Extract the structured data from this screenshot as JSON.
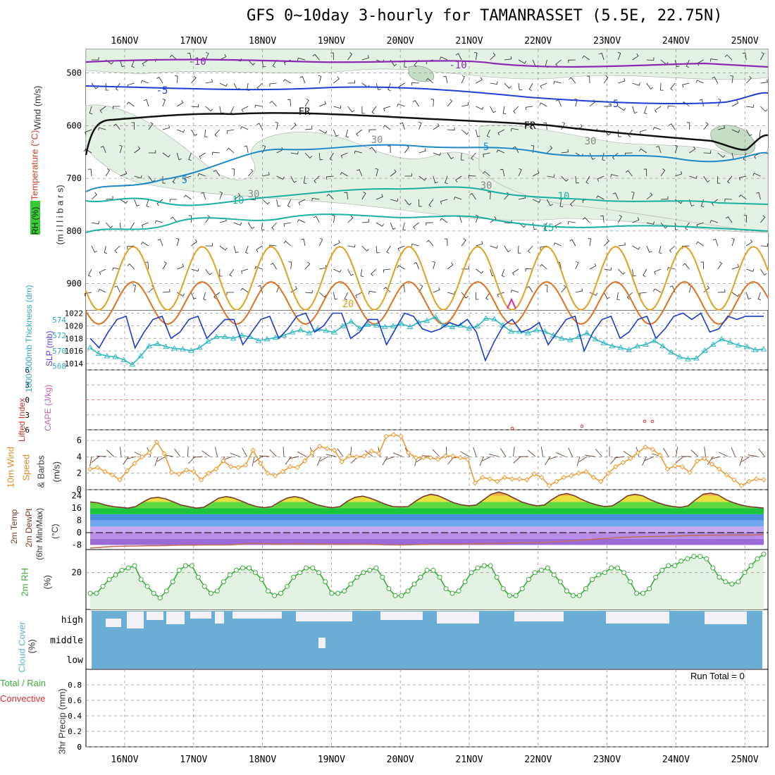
{
  "title": "GFS 0~10day 3-hourly for TAMANRASSET (5.5E, 22.75N)",
  "dates": [
    "16NOV",
    "17NOV",
    "18NOV",
    "19NOV",
    "20NOV",
    "21NOV",
    "22NOV",
    "23NOV",
    "24NOV",
    "25NOV"
  ],
  "run_total": "Run Total = 0",
  "left_labels": {
    "wind": "Wind (m/s)",
    "temperature": "Temperature (°C)",
    "rh": "RH (%)",
    "millibars": "(m i l l i b a r s)",
    "thickness": "1000-500mb Thickness (dm)",
    "slp": "SLP (mb)",
    "lifted": "Lifted Index",
    "cape": "CAPE (J/kg)",
    "wind10": "10m Wind",
    "speed": "Speed",
    "barbs": "& Barbs",
    "ms": "(m/s)",
    "temp2m": "2m Temp",
    "dew2m": "2m DewPt",
    "minmax": "(6hr Min/Max)",
    "degc": "(°C)",
    "rh2m": "2m RH",
    "pct": "(%)",
    "cloud": "Cloud Cover",
    "cpct": "(%)",
    "precip": "3hr Precip (mm)",
    "total_rain": "Total / Rain",
    "convective": "Convective"
  },
  "colors": {
    "bg_rh": "#e4f2e4",
    "rh_dark": "#c5dcc5",
    "cloud": "#6aaed6",
    "cloud_clear": "#f4f0f8",
    "slp": "#1a3ccc",
    "thick": "#33b8c0",
    "wind_speed": "#ee9933",
    "temp_line": "#7a3a2a",
    "rh2m": "#3aaa3a",
    "cape_dash": "#e05050"
  },
  "chart_data": [
    {
      "type": "line",
      "panel": "upper-air cross section",
      "ylabel": "(m i l l i b a r s)",
      "y_ticks": [
        500,
        600,
        700,
        800,
        900
      ],
      "contour_labels": [
        "-10",
        "-10",
        "-5",
        "-5",
        "FR",
        "FR",
        "5",
        "5",
        "10",
        "10",
        "15",
        "20",
        "30",
        "30",
        "30",
        "30"
      ],
      "series": [
        {
          "name": "-10",
          "values": [
            -10
          ]
        },
        {
          "name": "-5",
          "values": [
            -5
          ]
        },
        {
          "name": "FR",
          "values": [
            0
          ]
        },
        {
          "name": "5",
          "values": [
            5
          ]
        },
        {
          "name": "10",
          "values": [
            10
          ]
        },
        {
          "name": "15",
          "values": [
            15
          ]
        },
        {
          "name": "20",
          "values": [
            20
          ]
        }
      ]
    },
    {
      "type": "line",
      "panel": "thickness and slp",
      "y_ticks_left": [
        568,
        570,
        572,
        574
      ],
      "y_ticks_right": [
        1014,
        1016,
        1018,
        1020,
        1022
      ],
      "series": [
        {
          "name": "SLP (mb)",
          "values": [
            1018,
            1016.5,
            1019,
            1021,
            1021.5,
            1016.5,
            1019,
            1021,
            1021.5,
            1018,
            1019,
            1021,
            1021.5,
            1018,
            1019.5,
            1021,
            1021,
            1017,
            1019,
            1021,
            1021.5,
            1018,
            1019.5,
            1021.5,
            1022,
            1019,
            1020,
            1022,
            1022,
            1018,
            1019,
            1021,
            1021,
            1017,
            1019.5,
            1022,
            1021.5,
            1019.5,
            1019,
            1019.5,
            1020.5,
            1020,
            1021,
            1019,
            1014.5,
            1017.5,
            1020,
            1021,
            1019,
            1019.5,
            1020.5,
            1017,
            1019,
            1021,
            1021.5,
            1016,
            1019,
            1021,
            1021.5,
            1018,
            1019,
            1021,
            1021.5,
            1018,
            1019.5,
            1021.5,
            1022,
            1021,
            1022,
            1019,
            1019.5,
            1021.5,
            1021,
            1021.5,
            1021.5,
            1021.5
          ]
        },
        {
          "name": "1000-500mb Thickness (dm)",
          "values": [
            570.4,
            569.6,
            569.3,
            569.2,
            568.8,
            568.2,
            569.3,
            570.6,
            570.9,
            570.5,
            570.3,
            570.2,
            570.0,
            570.4,
            571.2,
            571.8,
            571.8,
            571.6,
            572.0,
            571.8,
            571.3,
            571.5,
            571.7,
            572.0,
            572.4,
            572.7,
            572.3,
            572.8,
            572.6,
            572.4,
            573.2,
            573.8,
            572.9,
            573.4,
            573.3,
            573.1,
            573.2,
            573.5,
            573.1,
            573.7,
            573.9,
            574.4,
            573.3,
            573.1,
            573.3,
            572.9,
            573.2,
            574.2,
            574.1,
            573.3,
            572.5,
            572.5,
            572.3,
            572.7,
            572.5,
            572.0,
            571.6,
            571.4,
            571.8,
            572.3,
            571.5,
            571.0,
            570.6,
            570.4,
            570.1,
            570.6,
            570.8,
            571.3,
            570.6,
            569.8,
            569.2,
            568.9,
            569.0,
            570.0,
            570.8,
            571.5,
            571.1,
            570.7,
            570.5,
            570.1,
            570.2
          ]
        }
      ]
    },
    {
      "type": "line",
      "panel": "lifted index and cape",
      "y_ticks": [
        -6,
        -3,
        0,
        3,
        6
      ],
      "series": [
        {
          "name": "Lifted Index",
          "values": []
        },
        {
          "name": "CAPE (J/kg)",
          "values": []
        }
      ]
    },
    {
      "type": "line",
      "panel": "10m wind speed",
      "y_ticks": [
        0,
        2,
        4,
        6
      ],
      "series": [
        {
          "name": "Speed",
          "values": [
            2.5,
            2.7,
            2.2,
            1.8,
            1.2,
            2.3,
            3.2,
            4.0,
            4.5,
            5.8,
            4.4,
            2.1,
            1.9,
            2.4,
            2.2,
            1.2,
            2.0,
            2.5,
            3.5,
            2.8,
            2.7,
            3.0,
            4.8,
            3.2,
            2.0,
            1.7,
            2.2,
            2.8,
            2.7,
            3.5,
            4.5,
            5.3,
            5.0,
            4.8,
            3.4,
            4.1,
            4.0,
            4.1,
            4.7,
            4.4,
            6.5,
            6.7,
            6.5,
            4.5,
            3.9,
            3.9,
            3.9,
            3.7,
            4.1,
            4.1,
            3.9,
            3.7,
            0.8,
            1.5,
            1.3,
            1.0,
            1.5,
            1.3,
            1.3,
            1.2,
            1.9,
            1.5,
            0.5,
            1.0,
            1.5,
            1.7,
            2.0,
            2.2,
            1.5,
            1.0,
            2.0,
            2.8,
            3.3,
            3.8,
            4.5,
            5.2,
            4.9,
            4.2,
            2.5,
            2.9,
            2.8,
            2.1,
            3.5,
            3.8,
            3.1,
            2.5,
            1.8,
            1.2,
            0.5,
            1.0,
            1.3,
            1.2
          ]
        }
      ]
    },
    {
      "type": "area",
      "panel": "2m temperature",
      "y_ticks": [
        -8,
        0,
        8,
        16,
        24
      ],
      "series": [
        {
          "name": "2m Temp",
          "values": [
            20,
            19.5,
            18,
            17,
            16.5,
            16,
            17,
            20,
            22.5,
            23,
            22,
            20,
            18,
            17,
            16,
            16.5,
            19.5,
            22.5,
            23.5,
            22.5,
            20.5,
            18.5,
            17,
            16.3,
            17,
            20,
            22.5,
            23.5,
            22.5,
            20,
            18.2,
            17,
            16.2,
            17,
            20.5,
            23,
            23.8,
            22.5,
            20.5,
            18.5,
            17,
            16.8,
            17,
            20.5,
            23.5,
            25,
            24,
            21.8,
            19.5,
            18.2,
            17.5,
            18,
            21.5,
            25,
            26.5,
            25,
            22.5,
            20,
            18.5,
            17.5,
            18,
            21.5,
            24.5,
            25.5,
            24,
            21.5,
            19.5,
            18,
            17,
            17.5,
            20.5,
            24,
            25,
            24,
            21.5,
            19.5,
            18,
            17,
            16.5,
            17.5,
            21.5,
            25,
            25.7,
            24.5,
            21.5,
            19.5,
            18,
            17,
            16.5,
            16
          ]
        },
        {
          "name": "2m DewPt",
          "values": [
            -10,
            -9.5,
            -9,
            -8.8,
            -8.7,
            -8.5,
            -8.5,
            -8.3,
            -8.1,
            -8.1,
            -8,
            -8,
            -8,
            -7.5,
            -7,
            -7.2,
            -7.5,
            -7.4,
            -7.2,
            -7.3,
            -7.5,
            -7.5,
            -7.5,
            -7.5,
            -7.6,
            -7.8,
            -8,
            -8,
            -7.8,
            -7.6,
            -7.5,
            -7.5,
            -7.5,
            -7.3,
            -7.2,
            -7,
            -6.8,
            -6.6,
            -6.5,
            -6.5,
            -6,
            -5.5,
            -5,
            -4.5,
            -4,
            -3.5,
            -3,
            -2.8,
            -2.5,
            -2.5,
            -2.3,
            -2,
            -1.8,
            -1.7,
            -1.6,
            -1.5,
            -1.5,
            -1.5,
            -1.2
          ]
        }
      ]
    },
    {
      "type": "line",
      "panel": "2m RH",
      "y_ticks": [
        20
      ],
      "series": [
        {
          "name": "2m RH",
          "values": [
            11,
            11,
            14,
            17,
            19,
            21,
            22,
            23,
            17,
            14,
            11,
            9,
            12,
            16,
            21,
            23,
            23,
            18,
            14,
            11,
            12,
            16,
            19,
            21,
            22,
            22,
            20,
            17,
            12,
            10,
            11,
            14,
            18,
            20,
            22,
            22,
            20,
            16,
            11,
            11,
            12,
            15,
            18,
            20,
            21,
            22,
            18,
            13,
            10,
            10,
            12,
            15,
            18,
            21,
            21,
            18,
            13,
            11,
            12,
            16,
            20,
            22,
            23,
            23,
            18,
            13,
            10,
            10,
            13,
            17,
            20,
            21,
            22,
            19,
            16,
            12,
            10,
            10,
            13,
            17,
            19,
            20,
            22,
            22,
            20,
            16,
            11,
            11,
            13,
            18,
            21,
            23,
            23,
            25,
            26,
            27,
            27,
            26,
            22,
            18,
            16,
            15,
            16,
            20,
            23,
            26,
            28
          ]
        }
      ]
    },
    {
      "type": "area",
      "panel": "cloud cover",
      "y_ticks": [
        "high",
        "middle",
        "low"
      ],
      "series": [
        {
          "name": "Cloud Cover",
          "values": [
            100
          ]
        }
      ]
    },
    {
      "type": "bar",
      "panel": "3hr precip",
      "ylabel": "3hr Precip (mm)",
      "y_ticks": [
        0,
        0.2,
        0.4,
        0.6,
        0.8
      ],
      "ylim": [
        0,
        1
      ],
      "series": [
        {
          "name": "Total / Rain",
          "values": [
            0
          ]
        },
        {
          "name": "Convective",
          "values": [
            0
          ]
        }
      ]
    }
  ]
}
